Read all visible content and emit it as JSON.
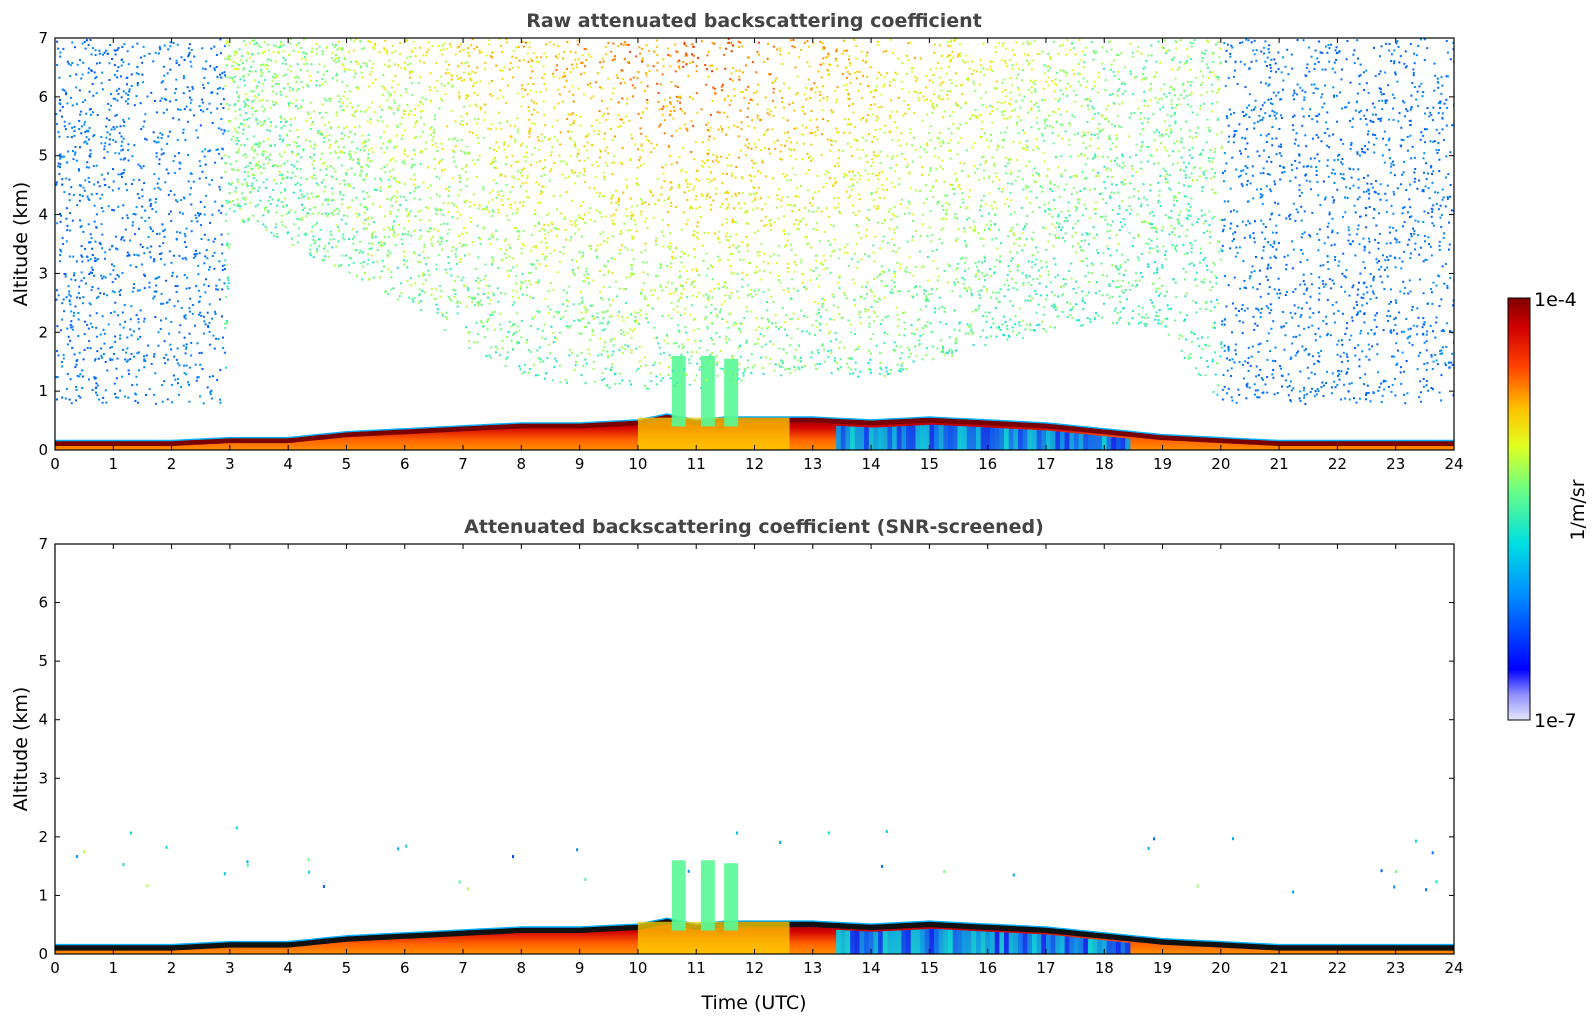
{
  "chart_data": [
    {
      "type": "heatmap",
      "title": "Raw attenuated backscattering coefficient",
      "xlabel": "",
      "ylabel": "Altitude (km)",
      "xlim": [
        0,
        24
      ],
      "ylim": [
        0,
        7
      ],
      "xticks": [
        "0",
        "1",
        "2",
        "3",
        "4",
        "5",
        "6",
        "7",
        "8",
        "9",
        "10",
        "11",
        "12",
        "13",
        "14",
        "15",
        "16",
        "17",
        "18",
        "19",
        "20",
        "21",
        "22",
        "23",
        "24"
      ],
      "yticks": [
        "0",
        "1",
        "2",
        "3",
        "4",
        "5",
        "6",
        "7"
      ],
      "color_scale": "log",
      "colormap": "jet",
      "boundary_layer_top_km": {
        "time_utc": [
          0,
          2,
          3,
          4,
          5,
          6,
          7,
          8,
          9,
          10,
          10.5,
          11,
          11.5,
          12,
          13,
          14,
          15,
          16,
          17,
          18,
          19,
          20,
          21,
          22,
          23,
          24
        ],
        "altitude": [
          0.15,
          0.15,
          0.2,
          0.2,
          0.3,
          0.35,
          0.4,
          0.45,
          0.45,
          0.5,
          0.6,
          0.5,
          0.55,
          0.55,
          0.55,
          0.5,
          0.55,
          0.5,
          0.45,
          0.35,
          0.25,
          0.2,
          0.15,
          0.15,
          0.15,
          0.15
        ]
      },
      "signal_top_km": {
        "time_utc": [
          0,
          2.9,
          3,
          5,
          7,
          9,
          11,
          13,
          15,
          17,
          19,
          20,
          24
        ],
        "altitude": [
          7,
          7,
          7,
          7,
          7,
          7,
          7,
          7,
          7,
          7,
          7,
          7,
          7
        ]
      },
      "noise_floor_km": {
        "time_utc": [
          0,
          2.9,
          3,
          4,
          5,
          6,
          7,
          8,
          9,
          10,
          11,
          12,
          13,
          14,
          15,
          16,
          17,
          18,
          19,
          20,
          24
        ],
        "altitude": [
          0.8,
          0.8,
          4.0,
          3.5,
          3.0,
          2.5,
          1.8,
          1.3,
          1.1,
          1.0,
          1.0,
          1.2,
          1.3,
          1.2,
          1.5,
          1.8,
          2.0,
          2.2,
          2.0,
          0.8,
          0.8
        ]
      }
    },
    {
      "type": "heatmap",
      "title": "Attenuated backscattering coefficient (SNR-screened)",
      "xlabel": "Time (UTC)",
      "ylabel": "Altitude (km)",
      "xlim": [
        0,
        24
      ],
      "ylim": [
        0,
        7
      ],
      "xticks": [
        "0",
        "1",
        "2",
        "3",
        "4",
        "5",
        "6",
        "7",
        "8",
        "9",
        "10",
        "11",
        "12",
        "13",
        "14",
        "15",
        "16",
        "17",
        "18",
        "19",
        "20",
        "21",
        "22",
        "23",
        "24"
      ],
      "yticks": [
        "0",
        "1",
        "2",
        "3",
        "4",
        "5",
        "6",
        "7"
      ],
      "color_scale": "log",
      "colormap": "jet",
      "plumes_km": [
        {
          "time_utc": 10.7,
          "top": 1.6
        },
        {
          "time_utc": 11.2,
          "top": 1.6
        },
        {
          "time_utc": 11.6,
          "top": 1.55
        }
      ]
    }
  ],
  "colorbar": {
    "label": "1/m/sr",
    "max_label": "1e-4",
    "min_label": "1e-7",
    "range": [
      1e-07,
      0.0001
    ],
    "scale": "log"
  }
}
